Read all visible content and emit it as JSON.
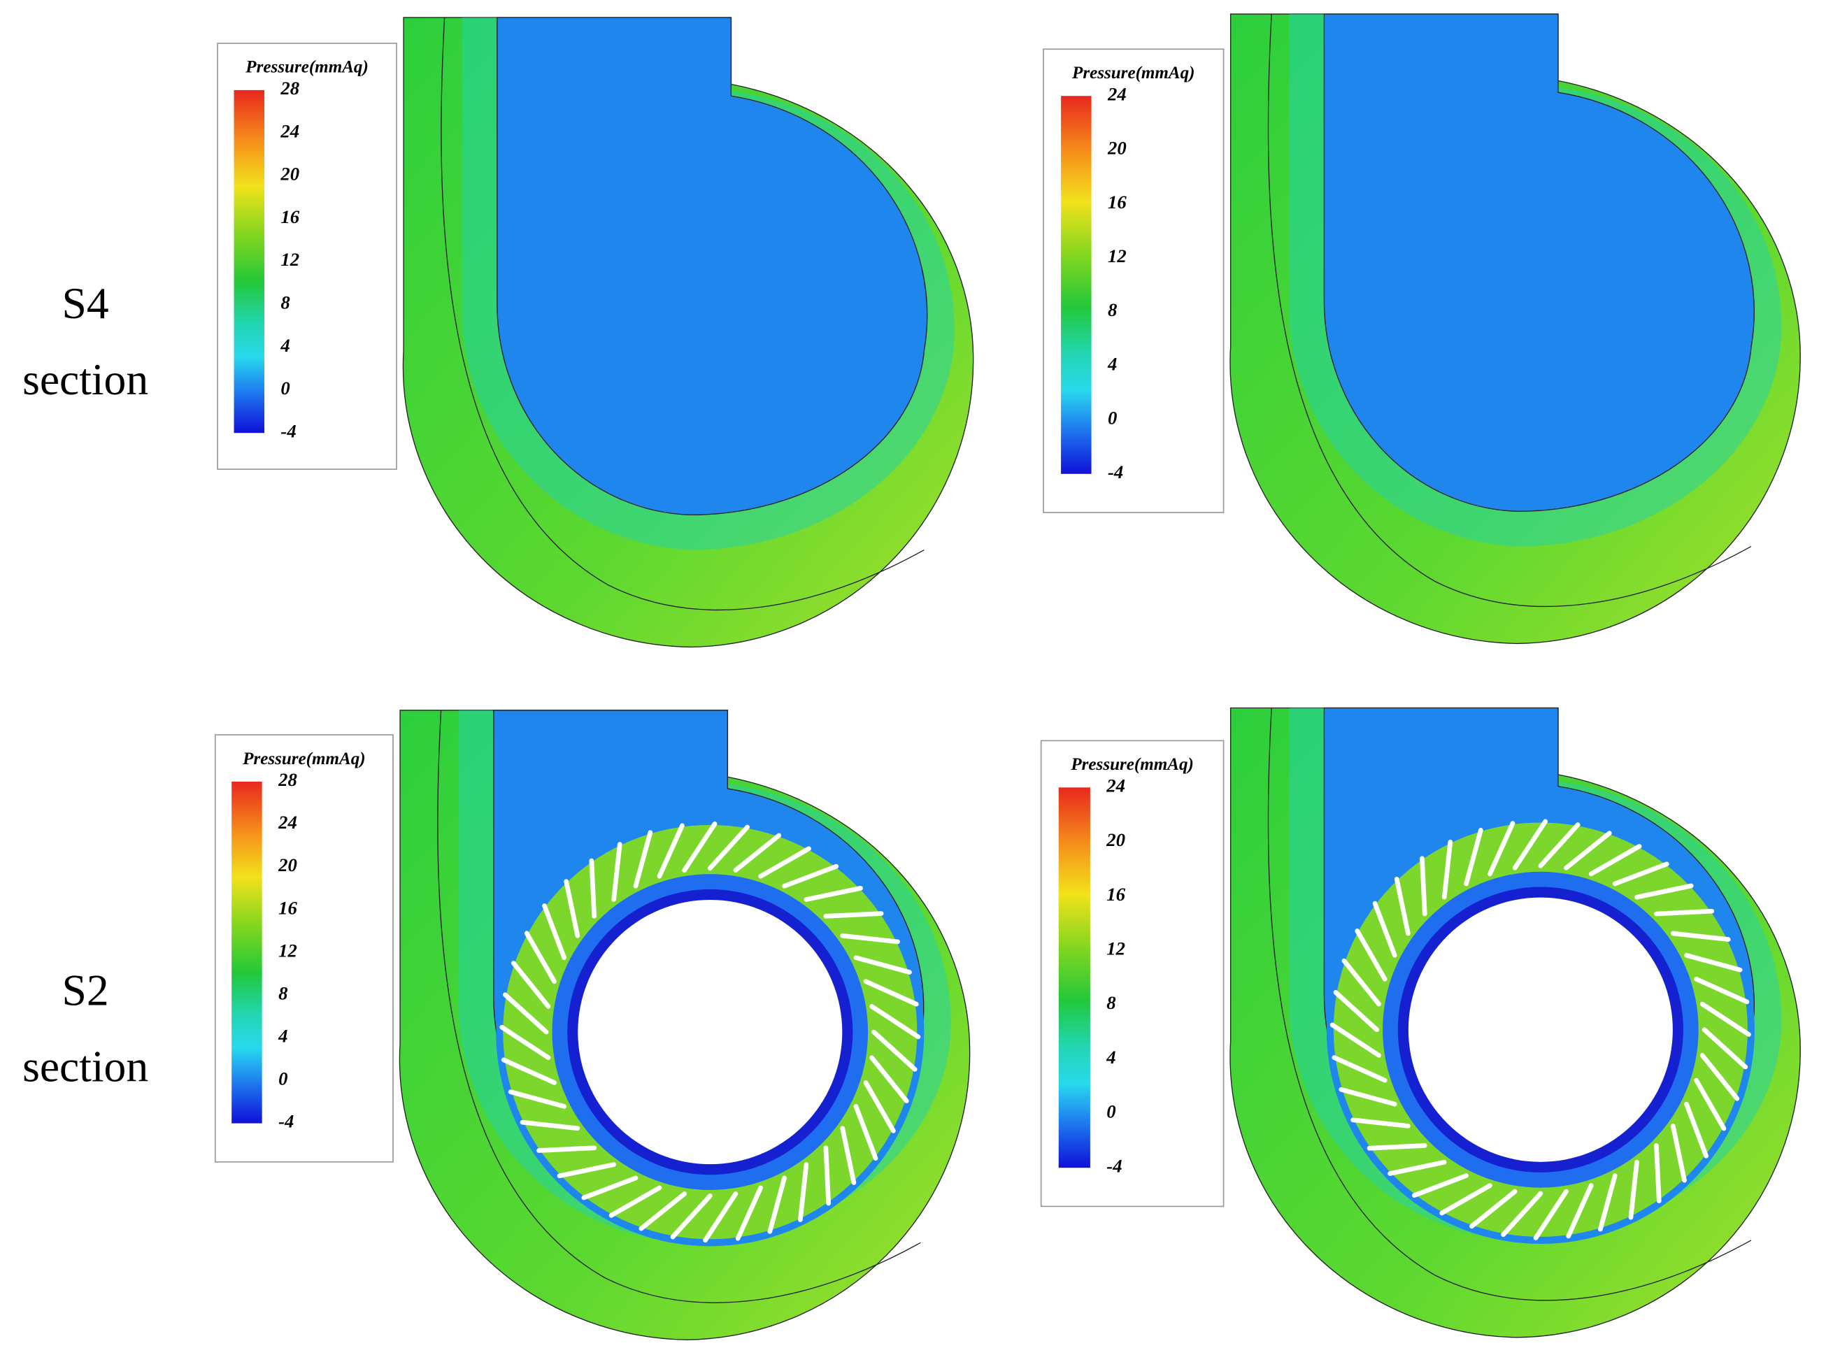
{
  "rows": [
    {
      "title": "S4",
      "subtitle": "section"
    },
    {
      "title": "S2",
      "subtitle": "section"
    }
  ],
  "panels": [
    {
      "legend": {
        "title": "Pressure(mmAq)",
        "ticks": [
          28,
          24,
          20,
          16,
          12,
          8,
          4,
          0,
          -4
        ]
      }
    },
    {
      "legend": {
        "title": "Pressure(mmAq)",
        "ticks": [
          24,
          20,
          16,
          12,
          8,
          4,
          0,
          -4
        ]
      }
    },
    {
      "legend": {
        "title": "Pressure(mmAq)",
        "ticks": [
          28,
          24,
          20,
          16,
          12,
          8,
          4,
          0,
          -4
        ]
      }
    },
    {
      "legend": {
        "title": "Pressure(mmAq)",
        "ticks": [
          24,
          20,
          16,
          12,
          8,
          4,
          0,
          -4
        ]
      }
    }
  ]
}
